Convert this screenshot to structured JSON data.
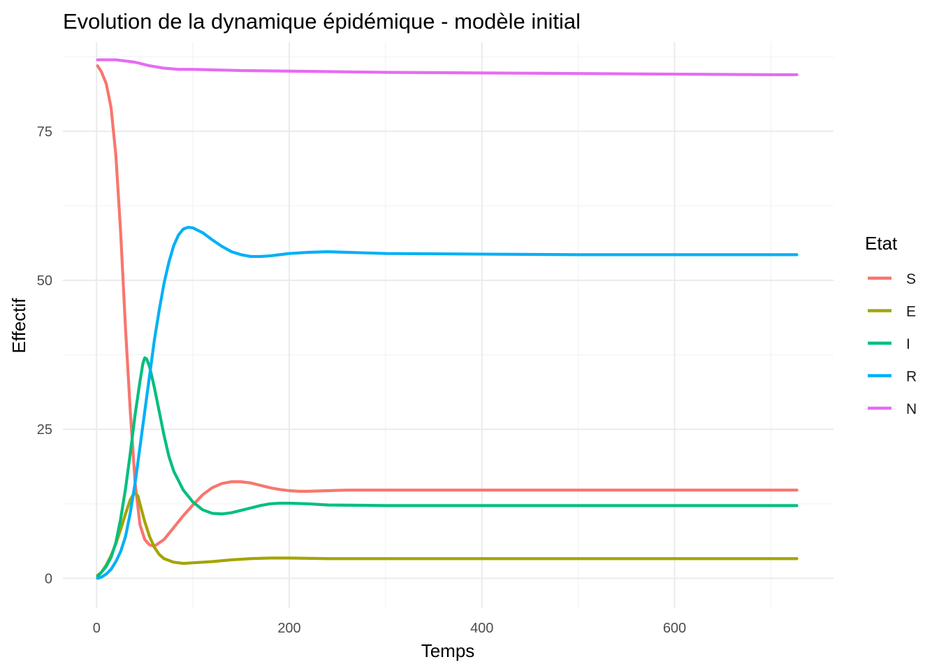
{
  "chart_data": {
    "type": "line",
    "title": "Evolution de la dynamique épidémique - modèle initial",
    "xlabel": "Temps",
    "ylabel": "Effectif",
    "xlim": [
      -35,
      765
    ],
    "ylim": [
      -5,
      90
    ],
    "x_ticks": [
      0,
      200,
      400,
      600
    ],
    "y_ticks": [
      0,
      25,
      50,
      75
    ],
    "x_minor_ticks": [
      100,
      300,
      500,
      700
    ],
    "y_minor_ticks": [
      12.5,
      37.5,
      62.5,
      87.5
    ],
    "grid": true,
    "legend": {
      "title": "Etat",
      "placement": "right"
    },
    "series": [
      {
        "name": "S",
        "color": "#F8766D",
        "points": [
          [
            1,
            86
          ],
          [
            5,
            85
          ],
          [
            10,
            83
          ],
          [
            15,
            79
          ],
          [
            20,
            71
          ],
          [
            25,
            58
          ],
          [
            30,
            42
          ],
          [
            35,
            28
          ],
          [
            40,
            16
          ],
          [
            45,
            9
          ],
          [
            50,
            6.5
          ],
          [
            55,
            5.6
          ],
          [
            60,
            5.4
          ],
          [
            70,
            6.5
          ],
          [
            80,
            8.5
          ],
          [
            90,
            10.5
          ],
          [
            100,
            12.3
          ],
          [
            110,
            14
          ],
          [
            120,
            15.2
          ],
          [
            130,
            15.9
          ],
          [
            140,
            16.2
          ],
          [
            150,
            16.2
          ],
          [
            160,
            16
          ],
          [
            170,
            15.6
          ],
          [
            180,
            15.2
          ],
          [
            190,
            14.9
          ],
          [
            200,
            14.7
          ],
          [
            210,
            14.6
          ],
          [
            220,
            14.6
          ],
          [
            240,
            14.7
          ],
          [
            260,
            14.8
          ],
          [
            300,
            14.8
          ],
          [
            400,
            14.8
          ],
          [
            500,
            14.8
          ],
          [
            600,
            14.8
          ],
          [
            700,
            14.8
          ],
          [
            727,
            14.8
          ]
        ]
      },
      {
        "name": "E",
        "color": "#A3A500",
        "points": [
          [
            1,
            0.5
          ],
          [
            5,
            1
          ],
          [
            10,
            2.2
          ],
          [
            15,
            3.8
          ],
          [
            20,
            5.8
          ],
          [
            25,
            8.2
          ],
          [
            30,
            10.8
          ],
          [
            35,
            13.2
          ],
          [
            38,
            14
          ],
          [
            40,
            14.3
          ],
          [
            43,
            13.8
          ],
          [
            45,
            12.5
          ],
          [
            50,
            9.5
          ],
          [
            55,
            7
          ],
          [
            60,
            5.2
          ],
          [
            65,
            4
          ],
          [
            70,
            3.3
          ],
          [
            80,
            2.7
          ],
          [
            90,
            2.5
          ],
          [
            100,
            2.6
          ],
          [
            120,
            2.8
          ],
          [
            140,
            3.1
          ],
          [
            160,
            3.3
          ],
          [
            180,
            3.4
          ],
          [
            200,
            3.4
          ],
          [
            240,
            3.3
          ],
          [
            300,
            3.3
          ],
          [
            400,
            3.3
          ],
          [
            500,
            3.3
          ],
          [
            600,
            3.3
          ],
          [
            727,
            3.3
          ]
        ]
      },
      {
        "name": "I",
        "color": "#00BF7D",
        "points": [
          [
            1,
            0.3
          ],
          [
            5,
            1
          ],
          [
            10,
            2
          ],
          [
            15,
            3.5
          ],
          [
            20,
            6
          ],
          [
            25,
            10
          ],
          [
            30,
            15
          ],
          [
            35,
            21
          ],
          [
            40,
            27.5
          ],
          [
            45,
            33
          ],
          [
            48,
            36
          ],
          [
            50,
            37
          ],
          [
            52,
            36.8
          ],
          [
            55,
            35.5
          ],
          [
            60,
            32
          ],
          [
            65,
            28
          ],
          [
            70,
            24
          ],
          [
            75,
            20.5
          ],
          [
            80,
            18
          ],
          [
            90,
            14.8
          ],
          [
            100,
            12.8
          ],
          [
            110,
            11.5
          ],
          [
            120,
            10.9
          ],
          [
            130,
            10.8
          ],
          [
            140,
            11
          ],
          [
            150,
            11.4
          ],
          [
            160,
            11.8
          ],
          [
            170,
            12.2
          ],
          [
            180,
            12.5
          ],
          [
            190,
            12.6
          ],
          [
            200,
            12.6
          ],
          [
            220,
            12.5
          ],
          [
            240,
            12.3
          ],
          [
            300,
            12.2
          ],
          [
            400,
            12.2
          ],
          [
            500,
            12.2
          ],
          [
            600,
            12.2
          ],
          [
            700,
            12.2
          ],
          [
            727,
            12.2
          ]
        ]
      },
      {
        "name": "R",
        "color": "#00B0F6",
        "points": [
          [
            1,
            0
          ],
          [
            5,
            0.2
          ],
          [
            10,
            0.7
          ],
          [
            15,
            1.5
          ],
          [
            20,
            2.8
          ],
          [
            25,
            4.5
          ],
          [
            30,
            7
          ],
          [
            35,
            11
          ],
          [
            40,
            16
          ],
          [
            45,
            22
          ],
          [
            50,
            28
          ],
          [
            55,
            34
          ],
          [
            60,
            40
          ],
          [
            65,
            45
          ],
          [
            70,
            49.5
          ],
          [
            75,
            53
          ],
          [
            80,
            55.8
          ],
          [
            85,
            57.6
          ],
          [
            90,
            58.6
          ],
          [
            95,
            58.9
          ],
          [
            100,
            58.8
          ],
          [
            110,
            58
          ],
          [
            120,
            56.8
          ],
          [
            130,
            55.7
          ],
          [
            140,
            54.8
          ],
          [
            150,
            54.3
          ],
          [
            160,
            54
          ],
          [
            170,
            54
          ],
          [
            180,
            54.1
          ],
          [
            190,
            54.3
          ],
          [
            200,
            54.5
          ],
          [
            220,
            54.7
          ],
          [
            240,
            54.8
          ],
          [
            260,
            54.7
          ],
          [
            300,
            54.5
          ],
          [
            400,
            54.4
          ],
          [
            500,
            54.3
          ],
          [
            600,
            54.3
          ],
          [
            700,
            54.3
          ],
          [
            727,
            54.3
          ]
        ]
      },
      {
        "name": "N",
        "color": "#E76BF3",
        "points": [
          [
            1,
            87
          ],
          [
            20,
            87
          ],
          [
            40,
            86.6
          ],
          [
            55,
            86
          ],
          [
            70,
            85.6
          ],
          [
            85,
            85.4
          ],
          [
            100,
            85.4
          ],
          [
            150,
            85.2
          ],
          [
            200,
            85.1
          ],
          [
            300,
            84.9
          ],
          [
            400,
            84.8
          ],
          [
            500,
            84.7
          ],
          [
            600,
            84.6
          ],
          [
            700,
            84.5
          ],
          [
            727,
            84.5
          ]
        ]
      }
    ]
  }
}
